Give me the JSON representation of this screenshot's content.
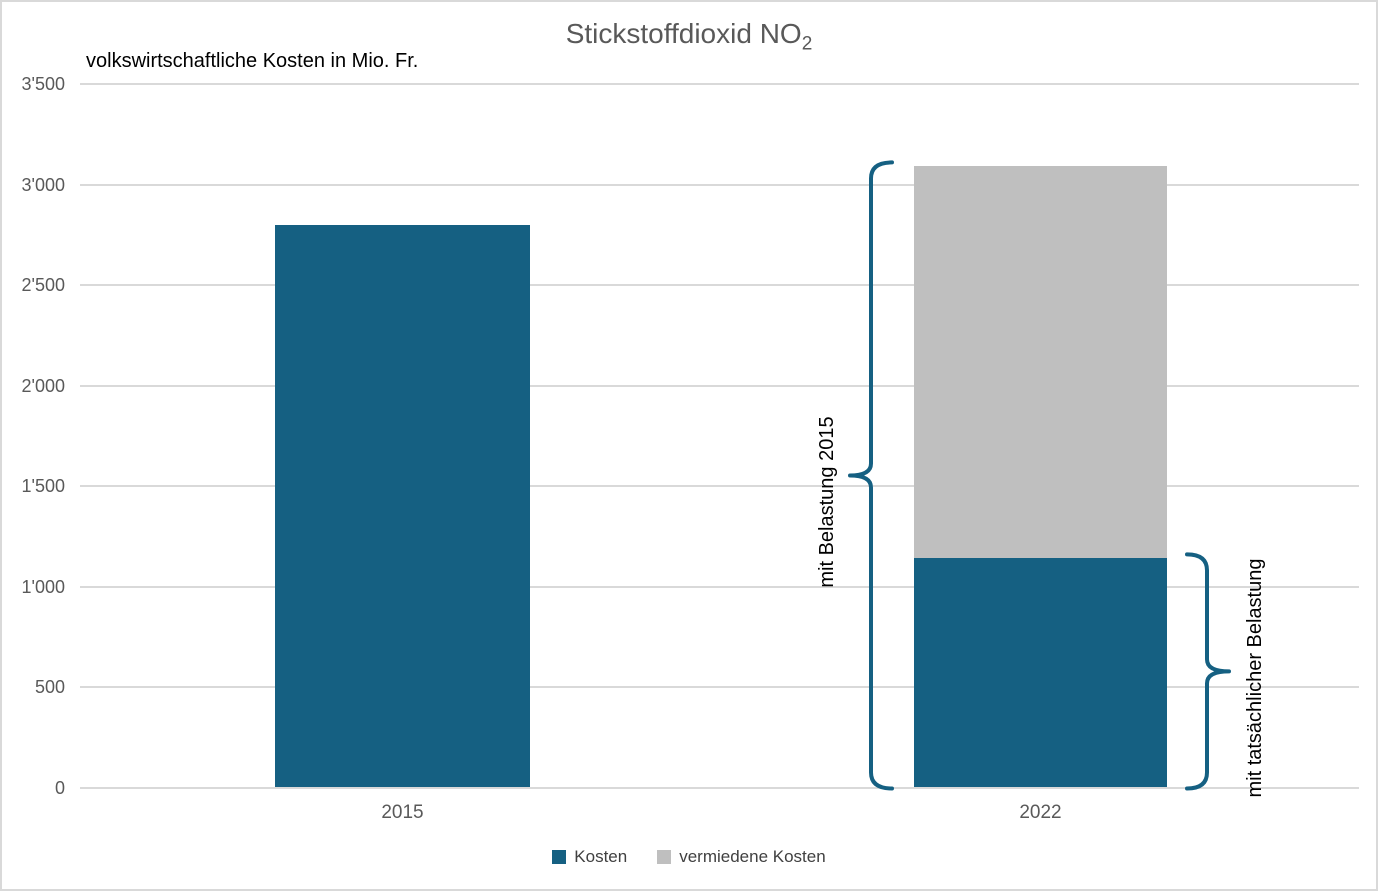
{
  "frame": {
    "background": "#FFFFFF",
    "border_color": "#D9D9D9"
  },
  "chart_data": {
    "type": "bar",
    "stacked": true,
    "title": "Stickstoffdioxid NO₂",
    "title_main": "Stickstoffdioxid NO",
    "title_subscript": "2",
    "subtitle": "volkswirtschaftliche Kosten in Mio. Fr.",
    "categories": [
      "2015",
      "2022"
    ],
    "series": [
      {
        "name": "Kosten",
        "color": "#156082",
        "values": [
          2800,
          1140
        ]
      },
      {
        "name": "vermiedene Kosten",
        "color": "#BFBFBF",
        "values": [
          0,
          1950
        ]
      }
    ],
    "ylim": [
      0,
      3500
    ],
    "ytick_values": [
      0,
      500,
      1000,
      1500,
      2000,
      2500,
      3000,
      3500
    ],
    "ytick_labels": [
      "0",
      "500",
      "1'000",
      "1'500",
      "2'000",
      "2'500",
      "3'000",
      "3'500"
    ],
    "grid": true,
    "gridline_color": "#D9D9D9",
    "legend_position": "bottom",
    "annotation_color": "#156082",
    "annotations": [
      {
        "text": "mit Belastung 2015",
        "side": "left",
        "from": 0,
        "to": 3090
      },
      {
        "text": "mit tatsächlicher Belastung",
        "side": "right",
        "from": 0,
        "to": 1140
      }
    ],
    "text_colors": {
      "title": "#595959",
      "subtitle": "#000000",
      "ticks": "#595959",
      "category_labels": "#595959",
      "legend": "#404040",
      "annotations": "#000000"
    }
  }
}
